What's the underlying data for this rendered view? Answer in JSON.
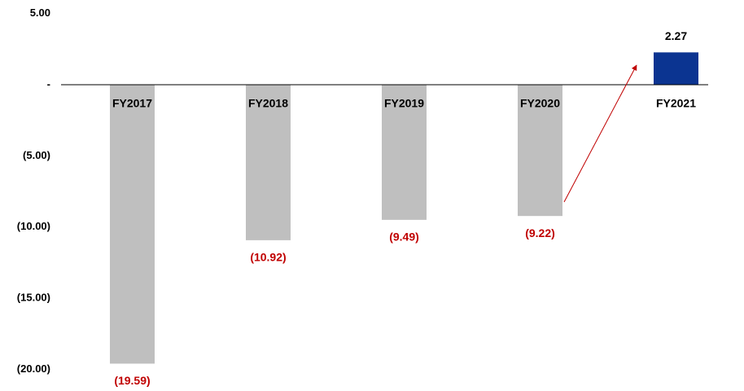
{
  "chart_data": {
    "type": "bar",
    "categories": [
      "FY2017",
      "FY2018",
      "FY2019",
      "FY2020",
      "FY2021"
    ],
    "values": [
      -19.59,
      -10.92,
      -9.49,
      -9.22,
      2.27
    ],
    "value_labels": [
      "(19.59)",
      "(10.92)",
      "(9.49)",
      "(9.22)",
      "2.27"
    ],
    "colors": [
      "#bfbfbf",
      "#bfbfbf",
      "#bfbfbf",
      "#bfbfbf",
      "#0b3491"
    ],
    "negative_label_color": "#c00000",
    "positive_label_color": "#000000",
    "ylim": [
      -20,
      5
    ],
    "yticks": [
      {
        "value": 5,
        "label": "5.00"
      },
      {
        "value": 0,
        "label": "-"
      },
      {
        "value": -5,
        "label": "(5.00)"
      },
      {
        "value": -10,
        "label": "(10.00)"
      },
      {
        "value": -15,
        "label": "(15.00)"
      },
      {
        "value": -20,
        "label": "(20.00)"
      }
    ],
    "grid": false
  }
}
